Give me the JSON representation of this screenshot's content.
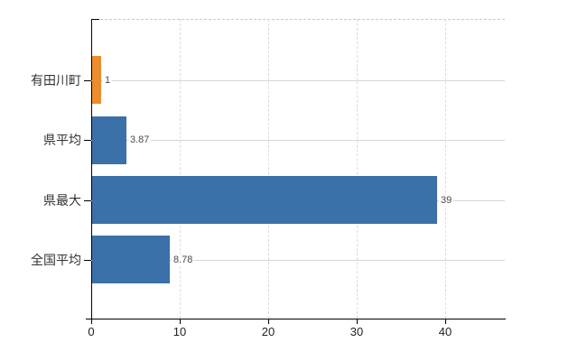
{
  "chart_data": {
    "type": "bar",
    "orientation": "horizontal",
    "title": "",
    "categories": [
      "有田川町",
      "県平均",
      "県最大",
      "全国平均"
    ],
    "values": [
      1,
      3.87,
      39,
      8.78
    ],
    "value_labels": [
      "1",
      "3.87",
      "39",
      "8.78"
    ],
    "series": [
      {
        "name": "value",
        "values": [
          1,
          3.87,
          39,
          8.78
        ]
      }
    ],
    "x_ticks": [
      "0",
      "10",
      "20",
      "30",
      "40"
    ],
    "x_tick_values": [
      0,
      10,
      20,
      30,
      40
    ],
    "xlim": [
      0,
      46.7
    ],
    "grid": true,
    "legend_visible": false,
    "bar_colors": [
      "#ed8c2e",
      "#3c70a9",
      "#3c70a9",
      "#3c70a9"
    ]
  },
  "colors": {
    "highlight_orange": "#ed8c2e",
    "series_blue": "#3c70a9",
    "axis": "#000000",
    "grid_vertical": "#dcdcdc",
    "grid_horizontal": "#d6d6d6",
    "top_border": "#c9c9c9",
    "category_label": "#333333",
    "value_label": "#4a4a4a",
    "tick_label": "#222222",
    "background": "#ffffff"
  }
}
